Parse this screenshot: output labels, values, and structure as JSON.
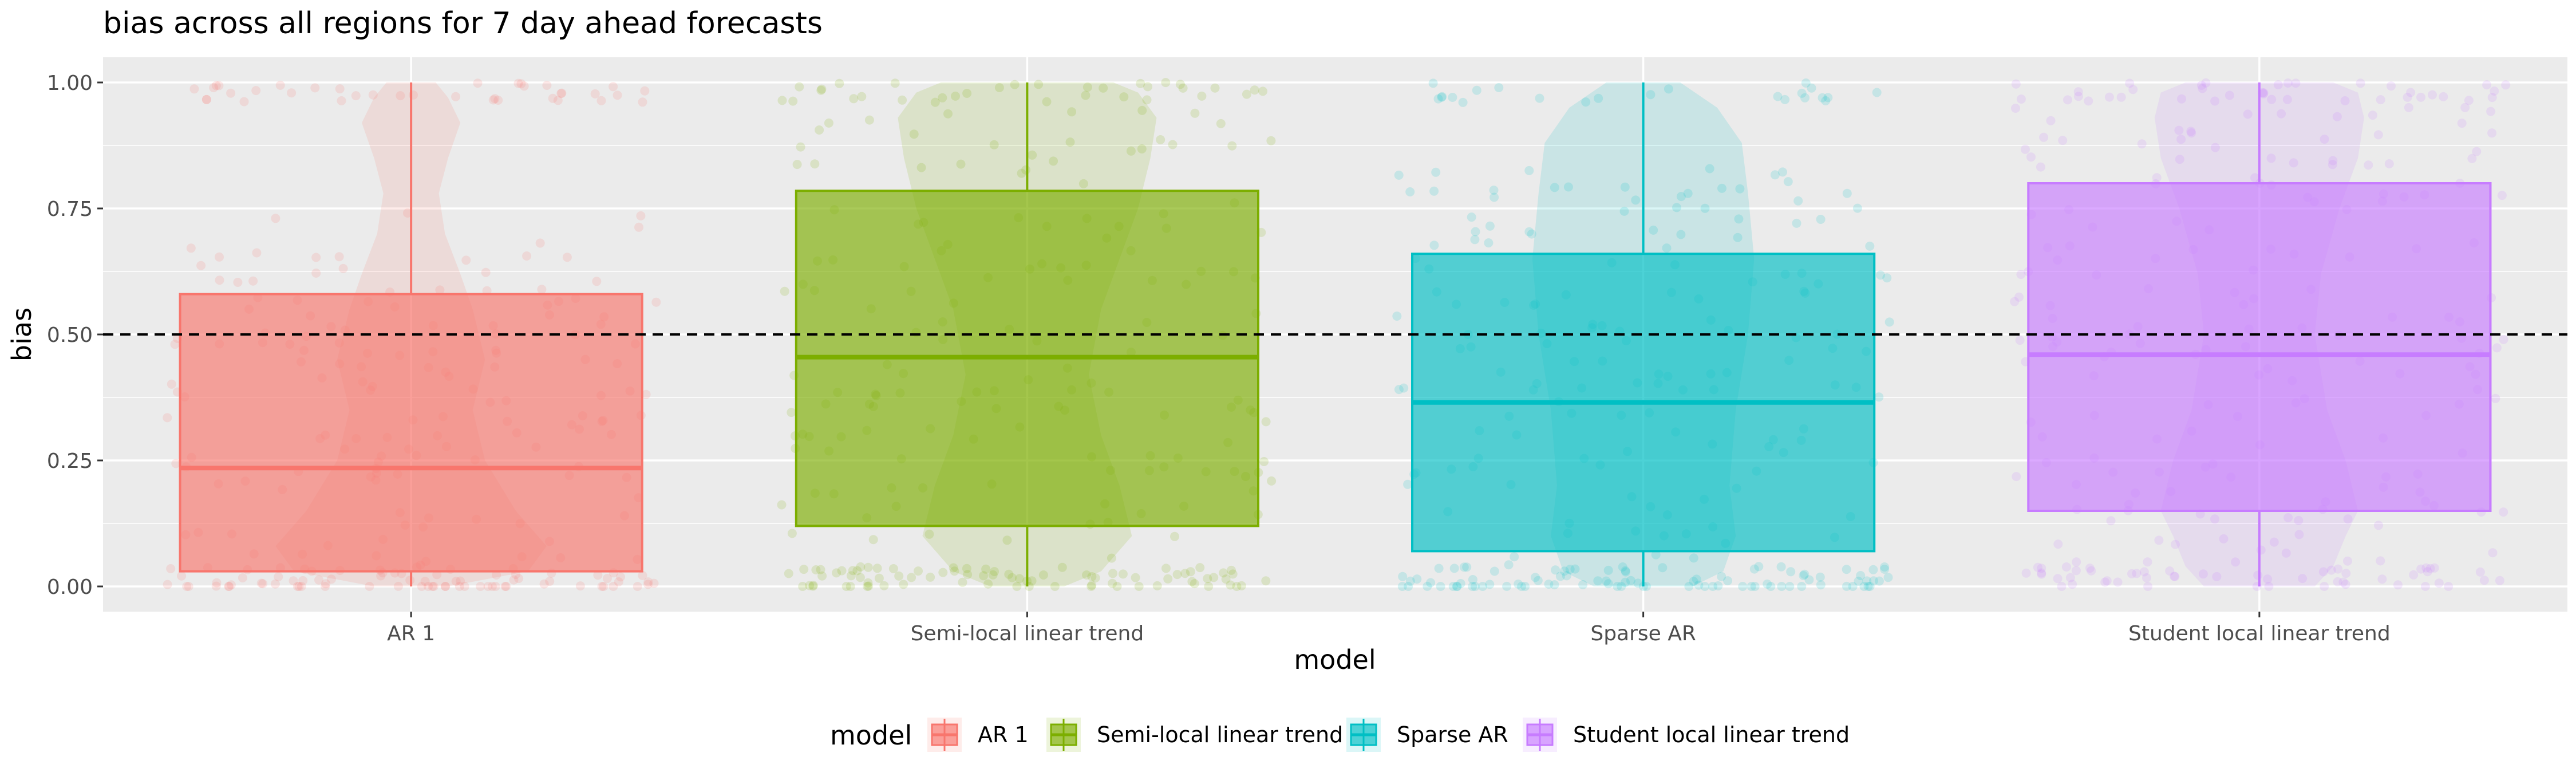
{
  "chart_data": {
    "type": "box",
    "title": "bias across all regions for 7 day ahead forecasts",
    "xlabel": "model",
    "ylabel": "bias",
    "ylim": [
      -0.05,
      1.05
    ],
    "yticks": [
      0.0,
      0.25,
      0.5,
      0.75,
      1.0
    ],
    "ytick_labels": [
      "0.00",
      "0.25",
      "0.50",
      "0.75",
      "1.00"
    ],
    "reference_line": {
      "y": 0.5,
      "style": "dashed",
      "color": "#000000"
    },
    "grid": true,
    "legend": {
      "title": "model",
      "placement": "bottom"
    },
    "categories": [
      "AR 1",
      "Semi-local linear trend",
      "Sparse AR",
      "Student local linear trend"
    ],
    "series": [
      {
        "name": "AR 1",
        "color": "#F8766D",
        "box": {
          "min": 0.0,
          "q1": 0.03,
          "median": 0.235,
          "q3": 0.58,
          "max": 1.0
        },
        "violin": [
          [
            0.0,
            0.06
          ],
          [
            0.03,
            0.19
          ],
          [
            0.08,
            0.22
          ],
          [
            0.15,
            0.17
          ],
          [
            0.25,
            0.12
          ],
          [
            0.35,
            0.1
          ],
          [
            0.45,
            0.12
          ],
          [
            0.55,
            0.1
          ],
          [
            0.62,
            0.08
          ],
          [
            0.7,
            0.055
          ],
          [
            0.78,
            0.045
          ],
          [
            0.85,
            0.06
          ],
          [
            0.92,
            0.08
          ],
          [
            0.97,
            0.06
          ],
          [
            1.0,
            0.04
          ]
        ]
      },
      {
        "name": "Semi-local linear trend",
        "color": "#7CAE00",
        "box": {
          "min": 0.0,
          "q1": 0.12,
          "median": 0.455,
          "q3": 0.785,
          "max": 1.0
        },
        "violin": [
          [
            0.0,
            0.06
          ],
          [
            0.03,
            0.12
          ],
          [
            0.1,
            0.17
          ],
          [
            0.2,
            0.15
          ],
          [
            0.3,
            0.12
          ],
          [
            0.42,
            0.1
          ],
          [
            0.55,
            0.12
          ],
          [
            0.65,
            0.15
          ],
          [
            0.75,
            0.18
          ],
          [
            0.85,
            0.2
          ],
          [
            0.93,
            0.21
          ],
          [
            0.98,
            0.18
          ],
          [
            1.0,
            0.14
          ]
        ]
      },
      {
        "name": "Sparse AR",
        "color": "#00BFC4",
        "box": {
          "min": 0.0,
          "q1": 0.07,
          "median": 0.365,
          "q3": 0.66,
          "max": 1.0
        },
        "violin": [
          [
            0.0,
            0.08
          ],
          [
            0.03,
            0.13
          ],
          [
            0.1,
            0.15
          ],
          [
            0.2,
            0.14
          ],
          [
            0.35,
            0.15
          ],
          [
            0.5,
            0.17
          ],
          [
            0.65,
            0.18
          ],
          [
            0.78,
            0.17
          ],
          [
            0.88,
            0.16
          ],
          [
            0.95,
            0.12
          ],
          [
            1.0,
            0.06
          ]
        ]
      },
      {
        "name": "Student local linear trend",
        "color": "#C77CFF",
        "box": {
          "min": 0.0,
          "q1": 0.15,
          "median": 0.46,
          "q3": 0.8,
          "max": 1.0
        },
        "violin": [
          [
            0.0,
            0.09
          ],
          [
            0.04,
            0.12
          ],
          [
            0.1,
            0.14
          ],
          [
            0.15,
            0.16
          ],
          [
            0.25,
            0.14
          ],
          [
            0.35,
            0.11
          ],
          [
            0.5,
            0.09
          ],
          [
            0.62,
            0.1
          ],
          [
            0.75,
            0.13
          ],
          [
            0.85,
            0.16
          ],
          [
            0.93,
            0.17
          ],
          [
            0.98,
            0.16
          ],
          [
            1.0,
            0.12
          ]
        ]
      }
    ]
  }
}
